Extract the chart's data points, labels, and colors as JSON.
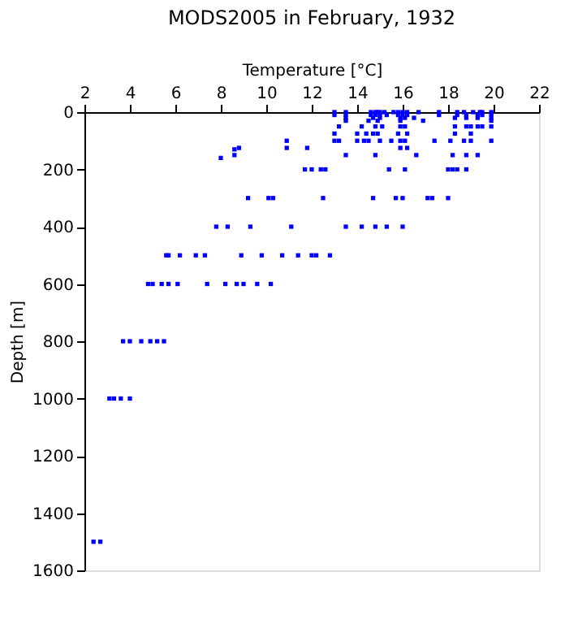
{
  "chart_data": {
    "type": "scatter",
    "title": "MODS2005 in February, 1932",
    "xlabel": "Temperature [°C]",
    "ylabel": "Depth [m]",
    "xlim": [
      2,
      22
    ],
    "xticks": [
      2,
      4,
      6,
      8,
      10,
      12,
      14,
      16,
      18,
      20,
      22
    ],
    "ylim": [
      1600,
      0
    ],
    "yticks": [
      0,
      200,
      400,
      600,
      800,
      1000,
      1200,
      1400,
      1600
    ],
    "grid": false,
    "legend": false,
    "marker": "square",
    "series": [
      {
        "color": "#0000ff",
        "x": [
          13.0,
          13.5,
          14.6,
          14.8,
          14.9,
          15.0,
          15.2,
          15.6,
          15.8,
          16.0,
          16.2,
          16.7,
          17.6,
          18.4,
          18.7,
          19.1,
          19.4,
          19.5,
          19.9,
          13.0,
          13.5,
          14.6,
          14.8,
          15.0,
          15.3,
          15.8,
          16.0,
          16.2,
          17.6,
          18.4,
          18.8,
          19.3,
          19.5,
          19.9,
          13.5,
          14.7,
          15.0,
          15.9,
          16.1,
          16.5,
          18.3,
          18.8,
          19.3,
          19.9,
          13.5,
          14.5,
          14.9,
          15.9,
          16.9,
          19.9,
          13.2,
          14.2,
          14.8,
          15.1,
          15.9,
          16.1,
          18.3,
          18.8,
          19.0,
          19.3,
          19.5,
          19.9,
          13.0,
          14.0,
          14.4,
          14.7,
          14.9,
          15.8,
          16.2,
          18.3,
          19.0,
          10.9,
          13.0,
          13.2,
          14.0,
          14.3,
          14.5,
          15.0,
          15.5,
          15.9,
          16.1,
          17.4,
          18.1,
          18.7,
          19.0,
          19.9,
          10.9,
          11.8,
          15.9,
          16.2,
          8.8,
          8.6,
          8.6,
          13.5,
          14.8,
          16.6,
          18.2,
          18.8,
          19.3,
          8.0,
          11.7,
          12.0,
          12.4,
          12.6,
          15.4,
          16.1,
          18.0,
          18.2,
          18.4,
          18.8,
          9.2,
          10.1,
          10.3,
          12.5,
          14.7,
          15.7,
          16.0,
          17.1,
          17.3,
          18.0,
          7.8,
          8.3,
          9.3,
          11.1,
          13.5,
          14.2,
          14.8,
          15.3,
          16.0,
          5.6,
          5.7,
          6.2,
          6.9,
          7.3,
          8.9,
          9.8,
          10.7,
          11.4,
          12.0,
          12.2,
          12.8,
          4.8,
          5.0,
          5.4,
          5.7,
          6.1,
          7.4,
          8.2,
          8.7,
          9.0,
          9.6,
          10.2,
          3.7,
          4.0,
          4.5,
          4.9,
          5.2,
          5.5,
          3.1,
          3.3,
          3.6,
          4.0,
          2.4,
          2.7
        ],
        "values": [
          0,
          0,
          0,
          0,
          0,
          0,
          0,
          0,
          0,
          0,
          0,
          0,
          0,
          0,
          0,
          0,
          0,
          0,
          0,
          10,
          10,
          10,
          10,
          10,
          10,
          10,
          10,
          10,
          10,
          10,
          10,
          10,
          10,
          10,
          20,
          20,
          20,
          20,
          20,
          20,
          20,
          20,
          20,
          20,
          30,
          30,
          30,
          30,
          30,
          30,
          50,
          50,
          50,
          50,
          50,
          50,
          50,
          50,
          50,
          50,
          50,
          50,
          75,
          75,
          75,
          75,
          75,
          75,
          75,
          75,
          75,
          100,
          100,
          100,
          100,
          100,
          100,
          100,
          100,
          100,
          100,
          100,
          100,
          100,
          100,
          100,
          125,
          125,
          125,
          125,
          125,
          130,
          150,
          150,
          150,
          150,
          150,
          150,
          150,
          160,
          200,
          200,
          200,
          200,
          200,
          200,
          200,
          200,
          200,
          200,
          300,
          300,
          300,
          300,
          300,
          300,
          300,
          300,
          300,
          300,
          400,
          400,
          400,
          400,
          400,
          400,
          400,
          400,
          400,
          500,
          500,
          500,
          500,
          500,
          500,
          500,
          500,
          500,
          500,
          500,
          500,
          600,
          600,
          600,
          600,
          600,
          600,
          600,
          600,
          600,
          600,
          600,
          800,
          800,
          800,
          800,
          800,
          800,
          1000,
          1000,
          1000,
          1000,
          1500,
          1500
        ]
      }
    ]
  }
}
